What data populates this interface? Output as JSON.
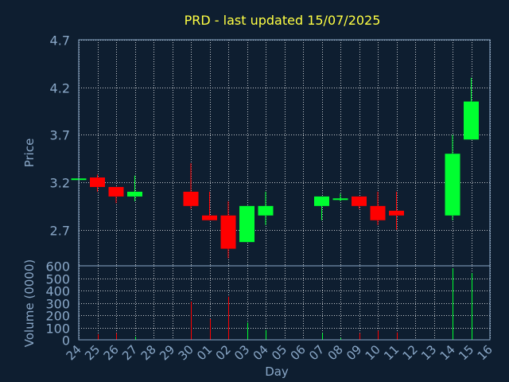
{
  "colors": {
    "background": "#0e1e30",
    "title": "#ffff44",
    "axis_text": "#8aa8c8",
    "frame": "#8aa8c8",
    "grid": "#ffffff",
    "up": "#00ff30",
    "down": "#ff0000"
  },
  "chart_data": [
    {
      "type": "candlestick",
      "title": "PRD - last updated 15/07/2025",
      "ylabel": "Price",
      "ylim": [
        2.32,
        4.7
      ],
      "yticks": [
        "4.7",
        "4.2",
        "3.7",
        "3.2",
        "2.7"
      ],
      "grid": true,
      "candles": [
        {
          "day": "24",
          "open": 3.24,
          "high": 3.25,
          "low": 3.23,
          "close": 3.24
        },
        {
          "day": "25",
          "open": 3.25,
          "high": 3.28,
          "low": 3.1,
          "close": 3.15
        },
        {
          "day": "26",
          "open": 3.15,
          "high": 3.15,
          "low": 2.98,
          "close": 3.05
        },
        {
          "day": "27",
          "open": 3.05,
          "high": 3.27,
          "low": 3.0,
          "close": 3.1
        },
        {
          "day": "30",
          "open": 3.1,
          "high": 3.4,
          "low": 2.92,
          "close": 2.95
        },
        {
          "day": "01",
          "open": 2.85,
          "high": 3.1,
          "low": 2.8,
          "close": 2.8
        },
        {
          "day": "02",
          "open": 2.85,
          "high": 3.0,
          "low": 2.4,
          "close": 2.5
        },
        {
          "day": "03",
          "open": 2.57,
          "high": 2.95,
          "low": 2.57,
          "close": 2.95
        },
        {
          "day": "04",
          "open": 2.85,
          "high": 3.1,
          "low": 2.75,
          "close": 2.95
        },
        {
          "day": "07",
          "open": 2.95,
          "high": 3.05,
          "low": 2.8,
          "close": 3.05
        },
        {
          "day": "08",
          "open": 3.03,
          "high": 3.08,
          "low": 3.0,
          "close": 3.03
        },
        {
          "day": "09",
          "open": 3.05,
          "high": 3.05,
          "low": 2.92,
          "close": 2.95
        },
        {
          "day": "10",
          "open": 2.95,
          "high": 3.1,
          "low": 2.75,
          "close": 2.8
        },
        {
          "day": "11",
          "open": 2.9,
          "high": 3.1,
          "low": 2.7,
          "close": 2.85
        },
        {
          "day": "14",
          "open": 2.85,
          "high": 3.7,
          "low": 2.8,
          "close": 3.5
        },
        {
          "day": "15",
          "open": 3.65,
          "high": 4.3,
          "low": 3.65,
          "close": 4.05
        }
      ]
    },
    {
      "type": "bar",
      "ylabel": "Volume (0000)",
      "ylim": [
        0,
        600
      ],
      "yticks": [
        "600",
        "500",
        "400",
        "300",
        "200",
        "100",
        "0"
      ],
      "xlabel": "Day",
      "xticks": [
        "24",
        "25",
        "26",
        "27",
        "28",
        "29",
        "30",
        "01",
        "02",
        "03",
        "04",
        "05",
        "06",
        "07",
        "08",
        "09",
        "10",
        "11",
        "12",
        "13",
        "14",
        "15",
        "16"
      ],
      "grid": true,
      "volumes": [
        {
          "day": "24",
          "value": 2,
          "dir": "up"
        },
        {
          "day": "25",
          "value": 45,
          "dir": "down"
        },
        {
          "day": "26",
          "value": 55,
          "dir": "down"
        },
        {
          "day": "27",
          "value": 25,
          "dir": "up"
        },
        {
          "day": "30",
          "value": 310,
          "dir": "down"
        },
        {
          "day": "01",
          "value": 170,
          "dir": "down"
        },
        {
          "day": "02",
          "value": 350,
          "dir": "down"
        },
        {
          "day": "03",
          "value": 140,
          "dir": "up"
        },
        {
          "day": "04",
          "value": 80,
          "dir": "up"
        },
        {
          "day": "07",
          "value": 55,
          "dir": "up"
        },
        {
          "day": "08",
          "value": 15,
          "dir": "up"
        },
        {
          "day": "09",
          "value": 55,
          "dir": "down"
        },
        {
          "day": "10",
          "value": 75,
          "dir": "down"
        },
        {
          "day": "11",
          "value": 60,
          "dir": "down"
        },
        {
          "day": "14",
          "value": 580,
          "dir": "up"
        },
        {
          "day": "15",
          "value": 540,
          "dir": "up"
        }
      ]
    }
  ]
}
